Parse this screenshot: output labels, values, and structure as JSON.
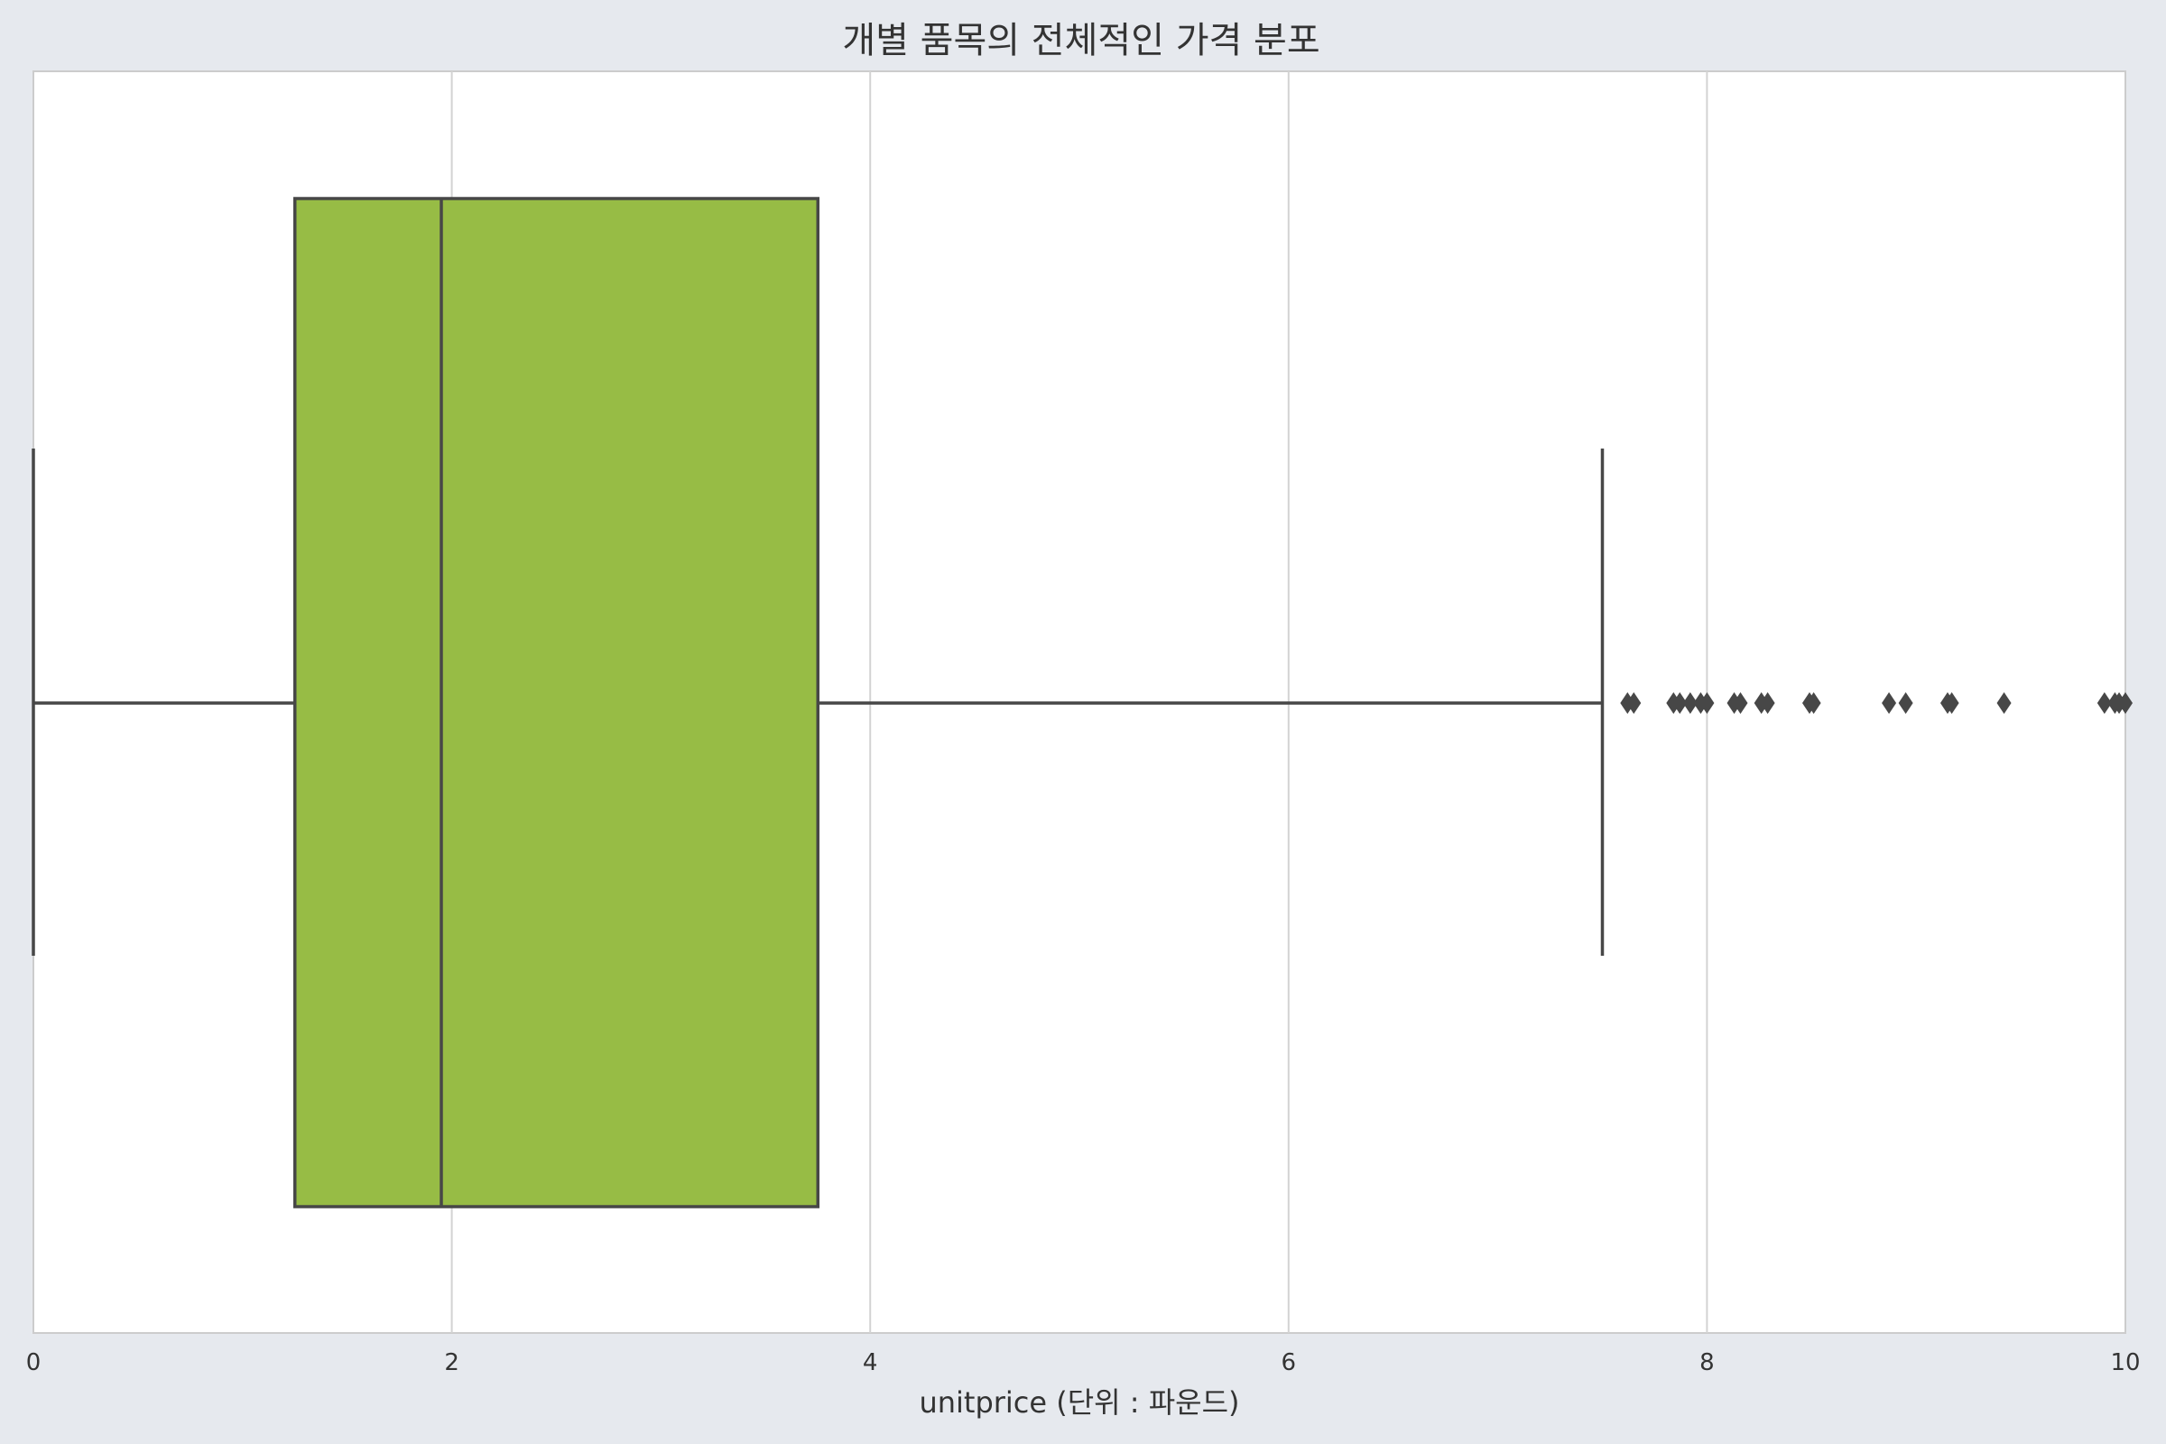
{
  "chart_data": {
    "type": "box",
    "title": "개별 품목의 전체적인 가격 분포",
    "xlabel": "unitprice (단위 : 파운드)",
    "ylabel": "",
    "xlim": [
      0,
      10
    ],
    "xticks": [
      0,
      2,
      4,
      6,
      8,
      10
    ],
    "grid": "vertical",
    "orientation": "horizontal",
    "box": {
      "whisker_low": 0.0,
      "q1": 1.25,
      "median": 1.95,
      "q3": 3.75,
      "whisker_high": 7.5
    },
    "outliers": [
      7.62,
      7.65,
      7.84,
      7.87,
      7.92,
      7.97,
      8.0,
      8.13,
      8.16,
      8.26,
      8.29,
      8.49,
      8.51,
      8.87,
      8.95,
      9.15,
      9.17,
      9.42,
      9.9,
      9.95,
      9.97,
      10.0
    ],
    "colors": {
      "box_fill": "#97bc45",
      "line": "#474747",
      "grid": "#d3d3d3",
      "plot_bg": "#ffffff",
      "figure_bg": "#e6e9ee"
    }
  }
}
